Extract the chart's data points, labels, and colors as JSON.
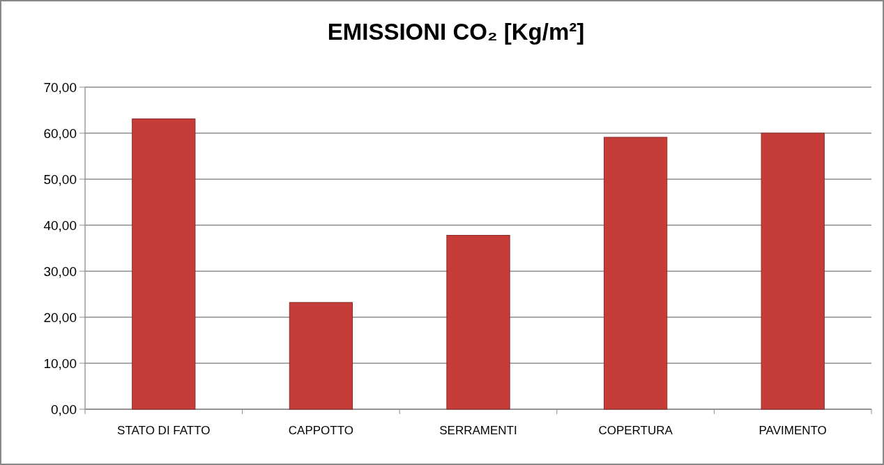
{
  "chart_data": {
    "type": "bar",
    "title": "EMISSIONI CO₂ [Kg/m²]",
    "categories": [
      "STATO DI FATTO",
      "CAPPOTTO",
      "SERRAMENTI",
      "COPERTURA",
      "PAVIMENTO"
    ],
    "values": [
      63.1,
      23.2,
      37.8,
      59.1,
      60.0
    ],
    "color": "#c63c38",
    "ylim": [
      0,
      70
    ],
    "yticks": [
      {
        "value": 0,
        "label": "0,00"
      },
      {
        "value": 10,
        "label": "10,00"
      },
      {
        "value": 20,
        "label": "20,00"
      },
      {
        "value": 30,
        "label": "30,00"
      },
      {
        "value": 40,
        "label": "40,00"
      },
      {
        "value": 50,
        "label": "50,00"
      },
      {
        "value": 60,
        "label": "60,00"
      },
      {
        "value": 70,
        "label": "70,00"
      }
    ],
    "grid": "y"
  }
}
